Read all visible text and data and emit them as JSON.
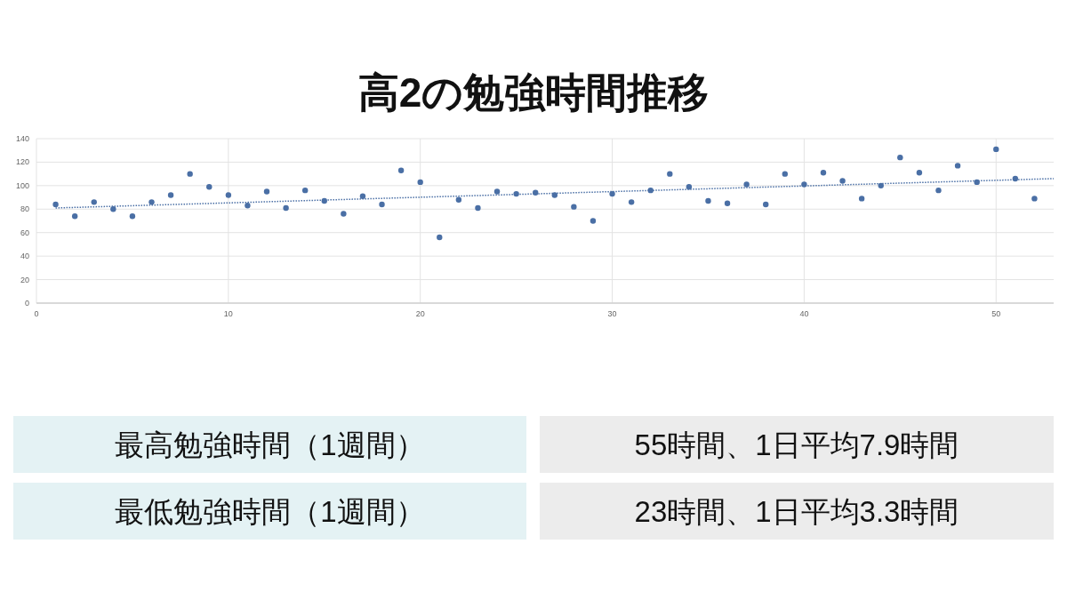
{
  "chart_data": {
    "type": "scatter",
    "title": "高2の勉強時間推移",
    "xlim": [
      0,
      53
    ],
    "ylim": [
      0,
      140
    ],
    "xticks": [
      0,
      10,
      20,
      30,
      40,
      50
    ],
    "yticks": [
      0,
      20,
      40,
      60,
      80,
      100,
      120,
      140
    ],
    "grid": true,
    "series": [
      {
        "marker": "circle",
        "color": "#4a6fa5",
        "x": [
          1,
          2,
          3,
          4,
          5,
          6,
          7,
          8,
          9,
          10,
          11,
          12,
          13,
          14,
          15,
          16,
          17,
          18,
          19,
          20,
          21,
          22,
          23,
          24,
          25,
          26,
          27,
          28,
          29,
          30,
          31,
          32,
          33,
          34,
          35,
          36,
          37,
          38,
          39,
          40,
          41,
          42,
          43,
          44,
          45,
          46,
          47,
          48,
          49,
          50,
          51,
          52
        ],
        "values": [
          84,
          74,
          86,
          80,
          74,
          86,
          92,
          110,
          99,
          92,
          83,
          95,
          81,
          96,
          87,
          76,
          91,
          84,
          113,
          103,
          56,
          88,
          81,
          95,
          93,
          94,
          92,
          82,
          70,
          93,
          86,
          96,
          110,
          99,
          87,
          85,
          101,
          84,
          110,
          101,
          111,
          104,
          89,
          100,
          124,
          111,
          96,
          117,
          103,
          131,
          106,
          89
        ]
      },
      {
        "type": "line",
        "line_style": "dotted",
        "marker": "none",
        "color": "#4a6fa5",
        "x": [
          1,
          53
        ],
        "values": [
          81,
          106
        ]
      }
    ],
    "annotations": [
      "最高勉強時間（1週間）",
      "55時間、1日平均7.9時間",
      "最低勉強時間（1週間）",
      "23時間、1日平均3.3時間"
    ]
  }
}
